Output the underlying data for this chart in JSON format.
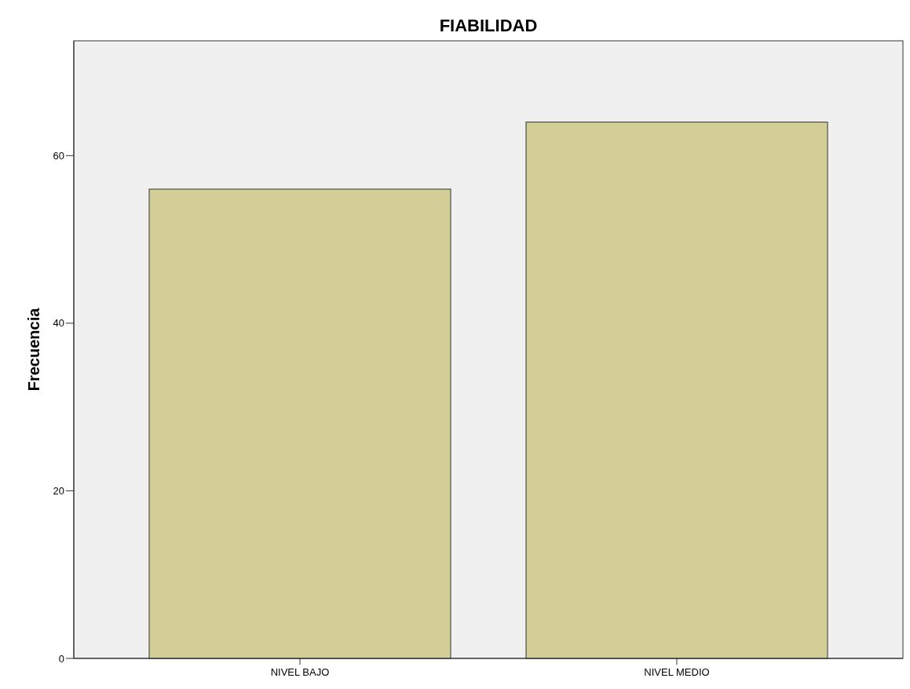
{
  "chart_data": {
    "type": "bar",
    "title": "FIABILIDAD",
    "ylabel": "Frecuencia",
    "categories": [
      "NIVEL BAJO",
      "NIVEL MEDIO"
    ],
    "values": [
      56,
      64
    ],
    "color": "#d3ce97",
    "ylim": [
      0,
      73.7
    ],
    "yticks": [
      0,
      20,
      40,
      60
    ],
    "grid": false
  }
}
